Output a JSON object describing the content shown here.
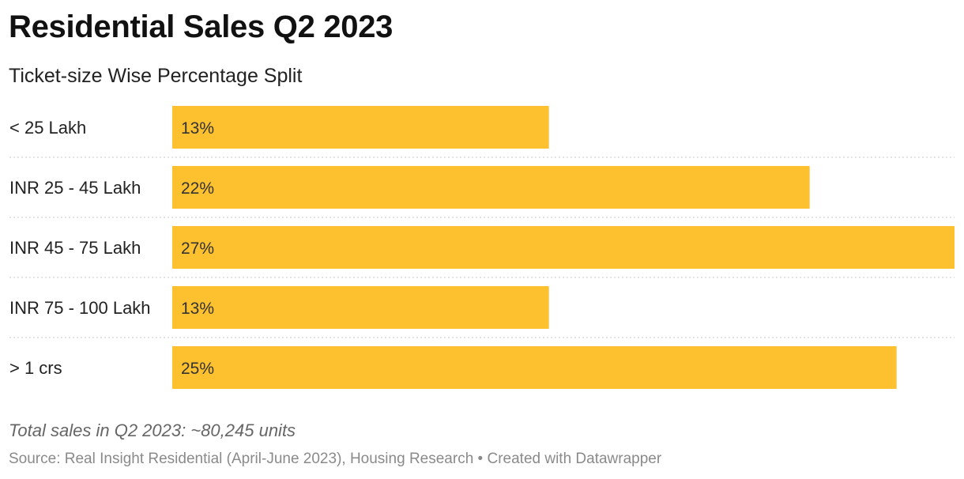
{
  "chart_data": {
    "type": "bar",
    "orientation": "horizontal",
    "title": "Residential Sales Q2 2023",
    "subtitle": "Ticket-size Wise Percentage Split",
    "categories": [
      "< 25 Lakh",
      "INR 25 - 45 Lakh",
      "INR 45 - 75 Lakh",
      "INR 75 - 100 Lakh",
      "> 1 crs"
    ],
    "values": [
      13,
      22,
      27,
      13,
      25
    ],
    "value_labels": [
      "13%",
      "22%",
      "27%",
      "13%",
      "25%"
    ],
    "unit": "%",
    "xlim": [
      0,
      27
    ],
    "bar_color": "#fdc02f",
    "grid": false,
    "separator_lines": "dotted",
    "note": "Total sales in Q2 2023: ~80,245 units",
    "source_prefix": "Source:",
    "source": "Real Insight Residential (April-June 2023), Housing Research",
    "credit_separator": "•",
    "credit": "Created with Datawrapper"
  }
}
